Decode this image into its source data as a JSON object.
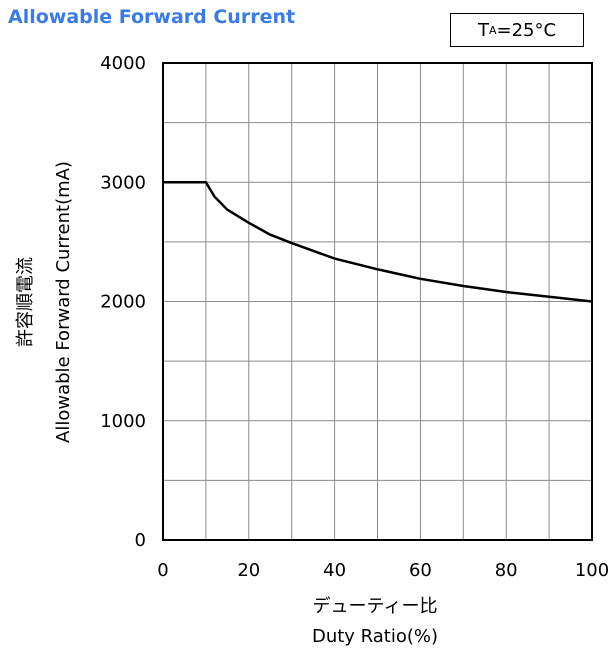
{
  "title": "Allowable Forward Current",
  "condition": {
    "symbol": "T",
    "subscript": "A",
    "value": "=25°C"
  },
  "chart_data": {
    "type": "line",
    "title": "Allowable Forward Current",
    "xlabel_ja": "デューティー比",
    "xlabel": "Duty Ratio(%)",
    "ylabel_ja": "許容順電流",
    "ylabel": "Allowable Forward Current(mA)",
    "xlim": [
      0,
      100
    ],
    "ylim": [
      0,
      4000
    ],
    "x_ticks": [
      "0",
      "20",
      "40",
      "60",
      "80",
      "100"
    ],
    "y_ticks": [
      "0",
      "1000",
      "2000",
      "3000",
      "4000"
    ],
    "grid": true,
    "series": [
      {
        "x": [
          0,
          10,
          12,
          15,
          20,
          25,
          30,
          40,
          50,
          60,
          70,
          80,
          90,
          100
        ],
        "values": [
          3000,
          3000,
          2880,
          2770,
          2660,
          2560,
          2490,
          2360,
          2270,
          2190,
          2130,
          2080,
          2040,
          2000
        ]
      }
    ]
  }
}
